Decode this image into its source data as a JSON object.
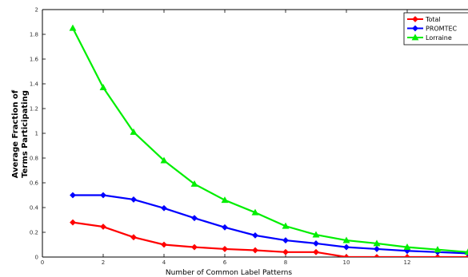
{
  "chart_data": {
    "type": "line",
    "title": "",
    "xlabel": "Number of Common Label Patterns",
    "ylabel": [
      "Average Fraction of",
      "Terms Participating"
    ],
    "xlim": [
      0,
      14
    ],
    "ylim": [
      0,
      2
    ],
    "x_ticks": [
      "0",
      "2",
      "4",
      "6",
      "8",
      "10",
      "12"
    ],
    "y_ticks": [
      "0",
      "0.2",
      "0.4",
      "0.6",
      "0.8",
      "1",
      "1.2",
      "1.4",
      "1.6",
      "1.8",
      "2"
    ],
    "grid": false,
    "legend_position": "top-right",
    "x": [
      1,
      2,
      3,
      4,
      5,
      6,
      7,
      8,
      9,
      10,
      11,
      12,
      13,
      14
    ],
    "series": [
      {
        "name": "Total",
        "color": "#ff0000",
        "marker": "diamond",
        "values": [
          0.28,
          0.245,
          0.16,
          0.1,
          0.08,
          0.065,
          0.055,
          0.04,
          0.04,
          0.0,
          0.0,
          0.0,
          0.0,
          0.0
        ]
      },
      {
        "name": "PROMTEC",
        "color": "#0000ff",
        "marker": "diamond",
        "values": [
          0.5,
          0.5,
          0.465,
          0.395,
          0.315,
          0.24,
          0.175,
          0.135,
          0.11,
          0.08,
          0.065,
          0.05,
          0.04,
          0.03
        ]
      },
      {
        "name": "Lorraine",
        "color": "#00ee00",
        "marker": "triangle",
        "values": [
          1.85,
          1.37,
          1.01,
          0.78,
          0.59,
          0.46,
          0.36,
          0.25,
          0.18,
          0.135,
          0.11,
          0.08,
          0.06,
          0.04
        ]
      }
    ]
  }
}
